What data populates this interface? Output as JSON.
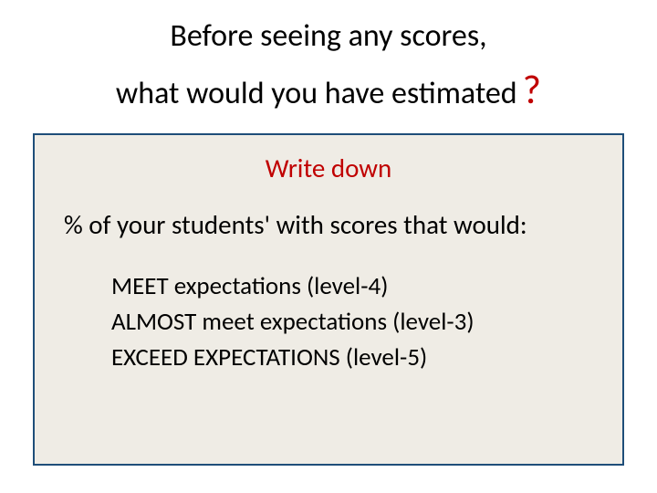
{
  "colors": {
    "accent_red": "#c00000",
    "box_border": "#1f4e79",
    "box_bg": "#efece5",
    "background": "#ffffff",
    "text": "#000000"
  },
  "typography": {
    "title_fontsize": 34,
    "qmark_fontsize": 44,
    "body_fontsize": 29,
    "bullet_fontsize": 27,
    "font_family": "Calibri"
  },
  "title": {
    "line1": "Before seeing any scores,",
    "line2": "what would you have estimated",
    "qmark": "?"
  },
  "box": {
    "heading": "Write down",
    "prompt": "% of your students' with scores that would:",
    "items": [
      "MEET expectations (level-4)",
      "ALMOST meet expectations  (level-3)",
      "EXCEED EXPECTATIONS (level-5)"
    ]
  }
}
